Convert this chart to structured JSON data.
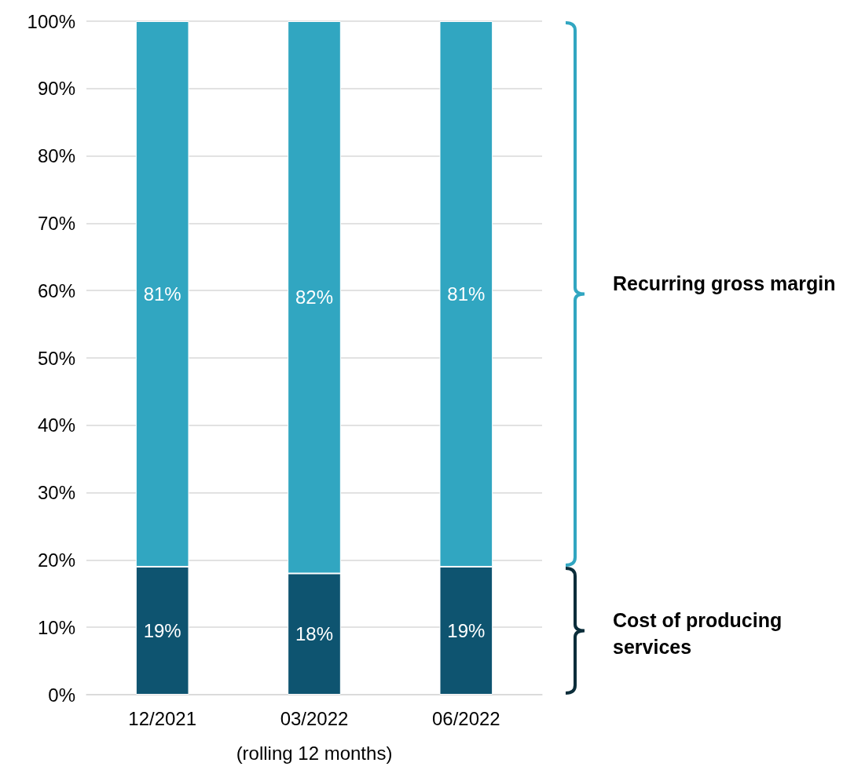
{
  "chart_data": {
    "type": "bar",
    "stacked": true,
    "xlabel": "(rolling 12 months)",
    "categories": [
      "12/2021",
      "03/2022",
      "06/2022"
    ],
    "series": [
      {
        "name": "Cost of producing services",
        "color": "#0e5470",
        "values": [
          19,
          18,
          19
        ],
        "value_labels": [
          "19%",
          "18%",
          "19%"
        ]
      },
      {
        "name": "Recurring gross margin",
        "color": "#31a6c1",
        "values": [
          81,
          82,
          81
        ],
        "value_labels": [
          "81%",
          "82%",
          "81%"
        ]
      }
    ],
    "ylim": [
      0,
      100
    ],
    "yticks": [
      {
        "value": 0,
        "label": "0%"
      },
      {
        "value": 10,
        "label": "10%"
      },
      {
        "value": 20,
        "label": "20%"
      },
      {
        "value": 30,
        "label": "30%"
      },
      {
        "value": 40,
        "label": "40%"
      },
      {
        "value": 50,
        "label": "50%"
      },
      {
        "value": 60,
        "label": "60%"
      },
      {
        "value": 70,
        "label": "70%"
      },
      {
        "value": 80,
        "label": "80%"
      },
      {
        "value": 90,
        "label": "90%"
      },
      {
        "value": 100,
        "label": "100%"
      }
    ],
    "grid": "y",
    "legend": false
  }
}
